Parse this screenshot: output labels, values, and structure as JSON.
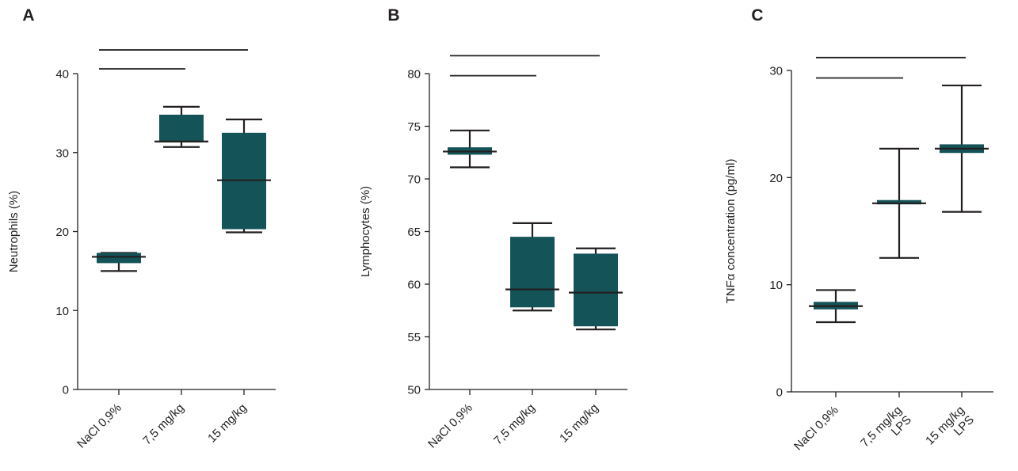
{
  "colors": {
    "box_fill": "#145357",
    "line": "#231f20",
    "background": "#ffffff"
  },
  "chart_data": [
    {
      "panel_label": "A",
      "type": "box",
      "ylabel": "Neutrophils (%)",
      "ylim": [
        0,
        40
      ],
      "yticks": [
        0,
        10,
        20,
        30,
        40
      ],
      "categories": [
        [
          "NaCl 0,9%"
        ],
        [
          "7,5 mg/kg"
        ],
        [
          "15 mg/kg"
        ]
      ],
      "boxes": [
        {
          "whisker_low": 15.0,
          "q1": 16.0,
          "median": 16.8,
          "q3": 17.3,
          "whisker_high": 17.3
        },
        {
          "whisker_low": 30.7,
          "q1": 31.3,
          "median": 31.4,
          "q3": 34.8,
          "whisker_high": 35.8
        },
        {
          "whisker_low": 19.9,
          "q1": 20.3,
          "median": 26.5,
          "q3": 32.5,
          "whisker_high": 34.2
        }
      ],
      "significance_brackets": [
        {
          "from": 0,
          "to": 1,
          "y": 40.6
        },
        {
          "from": 0,
          "to": 2,
          "y": 43.0
        }
      ]
    },
    {
      "panel_label": "B",
      "type": "box",
      "ylabel": "Lymphocytes (%)",
      "ylim": [
        50,
        80
      ],
      "yticks": [
        50,
        55,
        60,
        65,
        70,
        75,
        80
      ],
      "categories": [
        [
          "NaCl 0,9%"
        ],
        [
          "7,5 mg/kg"
        ],
        [
          "15 mg/kg"
        ]
      ],
      "boxes": [
        {
          "whisker_low": 71.1,
          "q1": 72.3,
          "median": 72.6,
          "q3": 73.0,
          "whisker_high": 74.6
        },
        {
          "whisker_low": 57.5,
          "q1": 57.8,
          "median": 59.5,
          "q3": 64.5,
          "whisker_high": 65.8
        },
        {
          "whisker_low": 55.7,
          "q1": 56.0,
          "median": 59.2,
          "q3": 62.9,
          "whisker_high": 63.4
        }
      ],
      "significance_brackets": [
        {
          "from": 0,
          "to": 1,
          "y": 79.8
        },
        {
          "from": 0,
          "to": 2,
          "y": 81.7
        }
      ]
    },
    {
      "panel_label": "C",
      "type": "box",
      "ylabel": "TNFα concentration (pg/ml)",
      "ylim": [
        0,
        30
      ],
      "yticks": [
        0,
        10,
        20,
        30
      ],
      "categories": [
        [
          "NaCl 0,9%"
        ],
        [
          "7,5 mg/kg",
          "LPS"
        ],
        [
          "15 mg/kg",
          "LPS"
        ]
      ],
      "boxes": [
        {
          "whisker_low": 6.5,
          "q1": 7.7,
          "median": 8.0,
          "q3": 8.4,
          "whisker_high": 9.5
        },
        {
          "whisker_low": 12.5,
          "q1": 17.5,
          "median": 17.6,
          "q3": 17.9,
          "whisker_high": 22.7
        },
        {
          "whisker_low": 16.8,
          "q1": 22.3,
          "median": 22.7,
          "q3": 23.1,
          "whisker_high": 28.6
        }
      ],
      "significance_brackets": [
        {
          "from": 0,
          "to": 1,
          "y": 29.3
        },
        {
          "from": 0,
          "to": 2,
          "y": 31.2
        }
      ]
    }
  ]
}
